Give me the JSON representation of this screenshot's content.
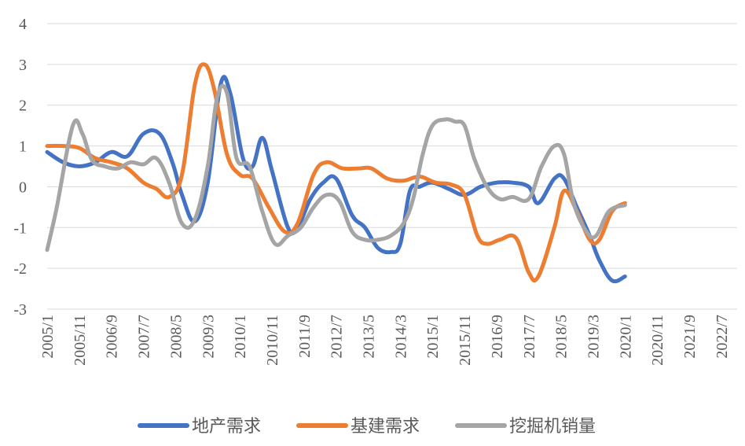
{
  "chart_data": {
    "type": "line",
    "title": "",
    "xlabel": "",
    "ylabel": "",
    "ylim": [
      -3,
      4
    ],
    "y_ticks": [
      4,
      3,
      2,
      1,
      0,
      -1,
      -2,
      -3
    ],
    "x_tick_labels": [
      "2005/1",
      "2005/11",
      "2006/9",
      "2007/7",
      "2008/5",
      "2009/3",
      "2010/1",
      "2010/11",
      "2011/9",
      "2012/7",
      "2013/5",
      "2014/3",
      "2015/1",
      "2015/11",
      "2016/9",
      "2017/7",
      "2018/5",
      "2019/3",
      "2020/1",
      "2020/11",
      "2021/9",
      "2022/7"
    ],
    "grid": "horizontal",
    "legend_position": "bottom",
    "series": [
      {
        "name": "地产需求",
        "color": "#4472C4",
        "points": [
          [
            0,
            0.85
          ],
          [
            0.5,
            0.6
          ],
          [
            1,
            0.5
          ],
          [
            1.5,
            0.6
          ],
          [
            2,
            0.85
          ],
          [
            2.5,
            0.75
          ],
          [
            3,
            1.3
          ],
          [
            3.5,
            1.3
          ],
          [
            3.9,
            0.6
          ],
          [
            4.2,
            -0.2
          ],
          [
            4.6,
            -0.85
          ],
          [
            5.0,
            0.1
          ],
          [
            5.4,
            2.5
          ],
          [
            5.7,
            2.3
          ],
          [
            6.1,
            0.7
          ],
          [
            6.4,
            0.5
          ],
          [
            6.7,
            1.2
          ],
          [
            7.0,
            0.4
          ],
          [
            7.5,
            -1.0
          ],
          [
            7.8,
            -1.0
          ],
          [
            8.2,
            -0.3
          ],
          [
            8.6,
            0.1
          ],
          [
            9.0,
            0.2
          ],
          [
            9.5,
            -0.7
          ],
          [
            9.9,
            -1.0
          ],
          [
            10.3,
            -1.5
          ],
          [
            10.7,
            -1.6
          ],
          [
            11.0,
            -1.4
          ],
          [
            11.3,
            -0.1
          ],
          [
            11.6,
            0.0
          ],
          [
            12.0,
            0.1
          ],
          [
            12.5,
            -0.05
          ],
          [
            13.0,
            -0.2
          ],
          [
            13.5,
            0.0
          ],
          [
            14.0,
            0.1
          ],
          [
            14.5,
            0.1
          ],
          [
            15.0,
            0.0
          ],
          [
            15.3,
            -0.4
          ],
          [
            15.8,
            0.2
          ],
          [
            16.1,
            0.2
          ],
          [
            16.5,
            -0.5
          ],
          [
            16.9,
            -1.2
          ],
          [
            17.2,
            -1.8
          ],
          [
            17.6,
            -2.3
          ],
          [
            18.0,
            -2.2
          ]
        ]
      },
      {
        "name": "基建需求",
        "color": "#ED7D31",
        "points": [
          [
            0,
            1.0
          ],
          [
            0.5,
            1.0
          ],
          [
            1,
            0.95
          ],
          [
            1.5,
            0.7
          ],
          [
            2,
            0.6
          ],
          [
            2.5,
            0.45
          ],
          [
            3,
            0.1
          ],
          [
            3.4,
            -0.05
          ],
          [
            3.8,
            -0.25
          ],
          [
            4.2,
            0.3
          ],
          [
            4.6,
            2.5
          ],
          [
            4.9,
            3.0
          ],
          [
            5.2,
            2.4
          ],
          [
            5.6,
            0.8
          ],
          [
            6.0,
            0.3
          ],
          [
            6.4,
            0.2
          ],
          [
            6.9,
            -0.5
          ],
          [
            7.4,
            -1.1
          ],
          [
            7.8,
            -0.9
          ],
          [
            8.3,
            0.3
          ],
          [
            8.7,
            0.6
          ],
          [
            9.2,
            0.45
          ],
          [
            9.7,
            0.45
          ],
          [
            10.1,
            0.45
          ],
          [
            10.6,
            0.2
          ],
          [
            11.1,
            0.15
          ],
          [
            11.6,
            0.25
          ],
          [
            12.1,
            0.1
          ],
          [
            12.6,
            0.05
          ],
          [
            13.0,
            -0.2
          ],
          [
            13.4,
            -1.2
          ],
          [
            13.7,
            -1.4
          ],
          [
            14.1,
            -1.3
          ],
          [
            14.6,
            -1.25
          ],
          [
            15.0,
            -2.1
          ],
          [
            15.3,
            -2.2
          ],
          [
            15.8,
            -1.0
          ],
          [
            16.1,
            -0.1
          ],
          [
            16.5,
            -0.6
          ],
          [
            16.9,
            -1.3
          ],
          [
            17.2,
            -1.3
          ],
          [
            17.6,
            -0.6
          ],
          [
            18.0,
            -0.4
          ]
        ]
      },
      {
        "name": "挖掘机销量",
        "color": "#A5A5A5",
        "points": [
          [
            0,
            -1.55
          ],
          [
            0.3,
            -0.5
          ],
          [
            0.8,
            1.5
          ],
          [
            1.1,
            1.3
          ],
          [
            1.4,
            0.65
          ],
          [
            1.8,
            0.5
          ],
          [
            2.2,
            0.45
          ],
          [
            2.6,
            0.6
          ],
          [
            3.0,
            0.55
          ],
          [
            3.4,
            0.7
          ],
          [
            3.8,
            0.1
          ],
          [
            4.2,
            -0.9
          ],
          [
            4.6,
            -0.8
          ],
          [
            5.0,
            0.5
          ],
          [
            5.3,
            2.2
          ],
          [
            5.6,
            2.3
          ],
          [
            5.9,
            0.7
          ],
          [
            6.3,
            0.5
          ],
          [
            6.7,
            -0.6
          ],
          [
            7.1,
            -1.4
          ],
          [
            7.5,
            -1.2
          ],
          [
            7.9,
            -1.0
          ],
          [
            8.3,
            -0.5
          ],
          [
            8.7,
            -0.2
          ],
          [
            9.1,
            -0.35
          ],
          [
            9.5,
            -1.1
          ],
          [
            9.9,
            -1.3
          ],
          [
            10.3,
            -1.3
          ],
          [
            10.7,
            -1.2
          ],
          [
            11.1,
            -0.9
          ],
          [
            11.4,
            -0.3
          ],
          [
            11.7,
            0.8
          ],
          [
            12.0,
            1.5
          ],
          [
            12.4,
            1.65
          ],
          [
            12.7,
            1.6
          ],
          [
            13.0,
            1.5
          ],
          [
            13.3,
            0.7
          ],
          [
            13.7,
            0.0
          ],
          [
            14.1,
            -0.3
          ],
          [
            14.5,
            -0.25
          ],
          [
            15.0,
            -0.3
          ],
          [
            15.4,
            0.5
          ],
          [
            15.8,
            1.0
          ],
          [
            16.1,
            0.8
          ],
          [
            16.4,
            -0.4
          ],
          [
            16.8,
            -1.1
          ],
          [
            17.1,
            -1.2
          ],
          [
            17.5,
            -0.6
          ],
          [
            18.0,
            -0.45
          ]
        ]
      }
    ]
  }
}
